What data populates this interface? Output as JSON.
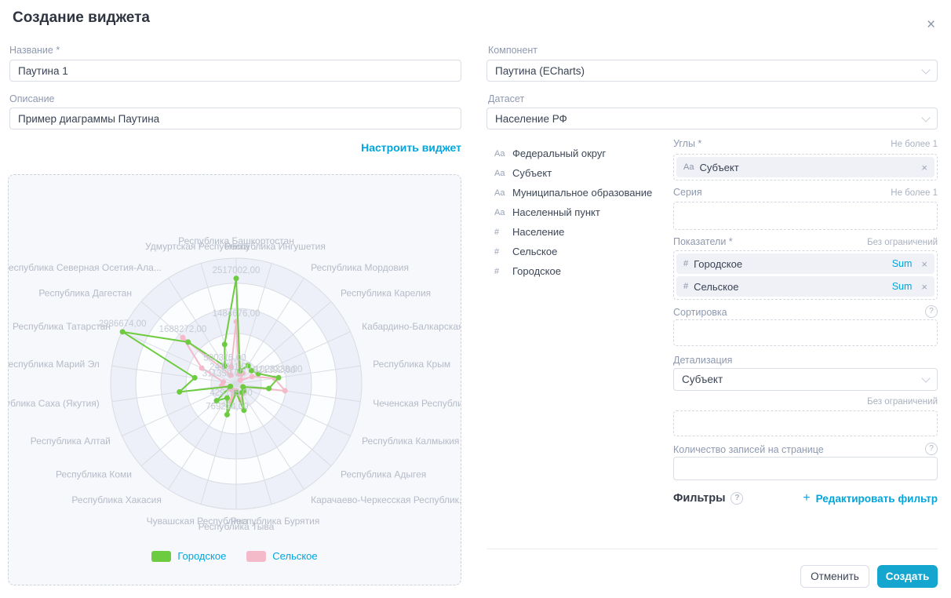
{
  "dialog": {
    "title": "Создание виджета"
  },
  "icons": {
    "close": "×",
    "help": "?",
    "plus": "+"
  },
  "colors": {
    "accent": "#00a6dd",
    "create_button": "#14a6ce",
    "series_urban": "#6dcb40",
    "series_rural": "#f4bac9"
  },
  "left": {
    "name_label": "Название *",
    "name_value": "Паутина 1",
    "description_label": "Описание",
    "description_value": "Пример диаграммы Паутина",
    "configure_link": "Настроить виджет"
  },
  "right": {
    "component_label": "Компонент",
    "component_value": "Паутина (ECharts)",
    "dataset_label": "Датасет",
    "dataset_value": "Население РФ",
    "fields": [
      {
        "type": "Aa",
        "name": "Федеральный округ"
      },
      {
        "type": "Aa",
        "name": "Субъект"
      },
      {
        "type": "Aa",
        "name": "Муниципальное образование"
      },
      {
        "type": "Aa",
        "name": "Населенный пункт"
      },
      {
        "type": "#",
        "name": "Население"
      },
      {
        "type": "#",
        "name": "Сельское"
      },
      {
        "type": "#",
        "name": "Городское"
      }
    ],
    "sections": {
      "angles": {
        "label": "Углы *",
        "hint": "Не более 1",
        "chip": {
          "prefix": "Aa",
          "text": "Субъект"
        }
      },
      "series": {
        "label": "Серия",
        "hint": "Не более 1"
      },
      "indicators": {
        "label": "Показатели *",
        "hint": "Без ограничений",
        "chips": [
          {
            "prefix": "#",
            "text": "Городское",
            "agg": "Sum"
          },
          {
            "prefix": "#",
            "text": "Сельское",
            "agg": "Sum"
          }
        ]
      },
      "sorting": {
        "label": "Сортировка"
      },
      "detail": {
        "label": "Детализация",
        "value": "Субъект"
      },
      "limit": {
        "hint": "Без ограничений"
      },
      "page_size": {
        "label": "Количество записей на странице"
      },
      "filters": {
        "label": "Фильтры",
        "edit_link": "Редактировать фильтр"
      }
    },
    "buttons": {
      "cancel": "Отменить",
      "create": "Создать"
    }
  },
  "chart_data": {
    "type": "radar",
    "title": "",
    "legend_position": "bottom",
    "rings": 5,
    "axis_max": 3000000,
    "categories": [
      "Республика Башкортостан",
      "Республика Ингушетия",
      "Республика Мордовия",
      "Республика Карелия",
      "Кабардино-Балкарская Ре",
      "Республика Крым",
      "Чеченская Республика",
      "Республика Калмыкия",
      "Республика Адыгея",
      "Карачаево-Черкесская Республик...",
      "Республика Бурятия",
      "Республика Тыва",
      "Чувашская Республика",
      "Республика Хакасия",
      "Республика Коми",
      "Республика Алтай",
      "Республика Саха (Якутия)",
      "Республика Марий Эл",
      "Республика Татарстан",
      "Республика Дагестан",
      "Республика Северная Осетия-Ала...",
      "Удмуртская Республика"
    ],
    "series": [
      {
        "name": "Городское",
        "color": "#6dcb40",
        "values": [
          2517002,
          320000,
          520000,
          480000,
          580000,
          1023338,
          790000,
          180000,
          250000,
          250000,
          660000,
          210000,
          769234,
          400000,
          620000,
          150000,
          1370000,
          1000000,
          2986674,
          1520000,
          500315,
          980000
        ]
      },
      {
        "name": "Сельское",
        "color": "#f4bac9",
        "values": [
          1484676,
          240000,
          300000,
          130000,
          415000,
          921392,
          1180000,
          170000,
          250000,
          280000,
          410000,
          170000,
          429195,
          170000,
          200000,
          160000,
          350000,
          311350,
          905000,
          1688272,
          244911,
          420000
        ]
      }
    ],
    "point_labels": [
      {
        "series": 0,
        "category": 0,
        "text": "2517002,00"
      },
      {
        "series": 1,
        "category": 0,
        "text": "1484676,00"
      },
      {
        "series": 0,
        "category": 18,
        "text": "2986674,00"
      },
      {
        "series": 1,
        "category": 19,
        "text": "1688272,00"
      },
      {
        "series": 0,
        "category": 20,
        "text": "500315,00"
      },
      {
        "series": 1,
        "category": 20,
        "text": "244911,00"
      },
      {
        "series": 1,
        "category": 17,
        "text": "311350,00"
      },
      {
        "series": 0,
        "category": 5,
        "text": "1023338,00"
      },
      {
        "series": 1,
        "category": 5,
        "text": "921392,00"
      },
      {
        "series": 1,
        "category": 12,
        "text": "429195,00"
      },
      {
        "series": 0,
        "category": 12,
        "text": "769234,00"
      }
    ]
  }
}
